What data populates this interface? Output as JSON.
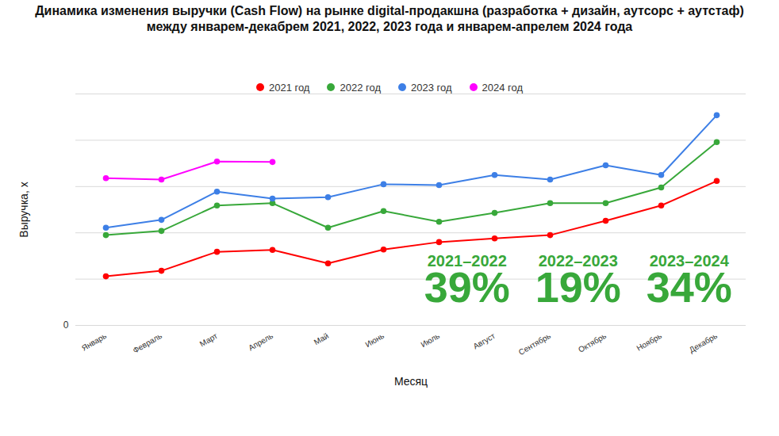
{
  "chart_data": {
    "type": "line",
    "title": "Динамика изменения выручки (Cash Flow) на рынке digital-продакшна (разработка + дизайн, аутсорс + аутстаф) между январем-декабрем 2021, 2022, 2023 года и январем-апрелем 2024 года",
    "x_label": "Месяц",
    "y_label": "Выручка, x",
    "categories": [
      "Январь",
      "Февраль",
      "Март",
      "Апрель",
      "Май",
      "Июнь",
      "Июль",
      "Август",
      "Сентябрь",
      "Октябрь",
      "Ноябрь",
      "Декабрь"
    ],
    "series": [
      {
        "name": "2021 год",
        "color": "#ff0000",
        "values": [
          1.06,
          1.18,
          1.59,
          1.63,
          1.34,
          1.64,
          1.8,
          1.88,
          1.95,
          2.26,
          2.59,
          3.12
        ]
      },
      {
        "name": "2022 год",
        "color": "#38a83a",
        "values": [
          1.95,
          2.04,
          2.59,
          2.64,
          2.11,
          2.47,
          2.24,
          2.43,
          2.64,
          2.64,
          2.98,
          3.96
        ]
      },
      {
        "name": "2023 год",
        "color": "#3d7fe6",
        "values": [
          2.11,
          2.28,
          2.89,
          2.74,
          2.77,
          3.05,
          3.03,
          3.25,
          3.15,
          3.46,
          3.25,
          4.54
        ]
      },
      {
        "name": "2024 год",
        "color": "#ff00ff",
        "values": [
          3.18,
          3.15,
          3.54,
          3.53,
          null,
          null,
          null,
          null,
          null,
          null,
          null,
          null
        ]
      }
    ],
    "ylim": [
      0,
      5
    ],
    "yticks": [
      {
        "value": 0,
        "label": "0"
      },
      {
        "value": 1,
        "label": null
      },
      {
        "value": 2,
        "label": null
      },
      {
        "value": 3,
        "label": null
      },
      {
        "value": 4,
        "label": null
      },
      {
        "value": 5,
        "label": null
      }
    ],
    "annotations": [
      {
        "period": "2021–2022",
        "text": "39%"
      },
      {
        "period": "2022–2023",
        "text": "19%"
      },
      {
        "period": "2023–2024",
        "text": "34%"
      }
    ],
    "annotation_color": "#38a83a",
    "grid": true,
    "legend": "top",
    "marker": "circle"
  }
}
